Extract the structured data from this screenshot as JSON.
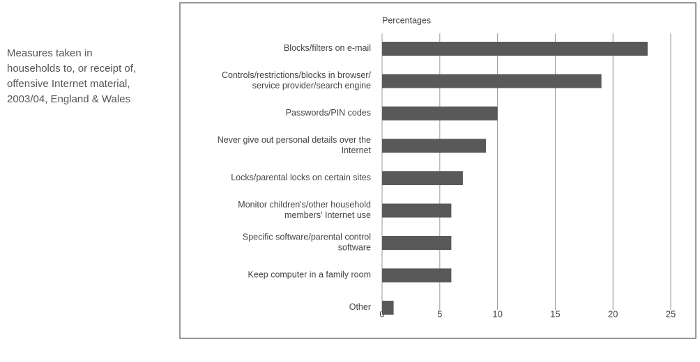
{
  "caption": [
    "Measures taken in",
    "households to, or receipt of,",
    "offensive Internet material,",
    "2003/04, England & Wales"
  ],
  "chart_data": {
    "type": "hbar",
    "axis_label": "Percentages",
    "categories": [
      "Blocks/filters on e-mail",
      "Controls/restrictions/blocks in browser/\nservice provider/search engine",
      "Passwords/PIN codes",
      "Never give out personal details over the\nInternet",
      "Locks/parental locks on certain sites",
      "Monitor children's/other household\nmembers' Internet use",
      "Specific software/parental control\nsoftware",
      "Keep computer in a family room",
      "Other"
    ],
    "values": [
      23,
      19,
      10,
      9,
      7,
      6,
      6,
      6,
      1
    ],
    "color": "#595959",
    "xlim": [
      0,
      25
    ],
    "xticks": [
      0,
      5,
      10,
      15,
      20,
      25
    ],
    "grid": true
  }
}
